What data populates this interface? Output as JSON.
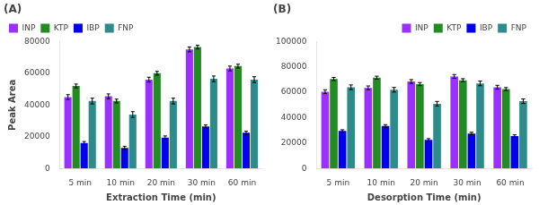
{
  "chart_data": [
    {
      "type": "bar",
      "title": "(A)",
      "xlabel": "Extraction Time (min)",
      "ylabel": "Peak Area",
      "categories": [
        "5 min",
        "10 min",
        "20 min",
        "30 min",
        "60 min"
      ],
      "series": [
        {
          "name": "INP",
          "color": "#9B30FF",
          "values": [
            45000,
            45500,
            56000,
            75000,
            63000
          ],
          "errors": [
            1500,
            1500,
            1500,
            1500,
            1500
          ]
        },
        {
          "name": "KTP",
          "color": "#228B22",
          "values": [
            52000,
            42500,
            60000,
            76500,
            64500
          ],
          "errors": [
            1200,
            1200,
            1200,
            1200,
            1200
          ]
        },
        {
          "name": "IBP",
          "color": "#0000EE",
          "values": [
            16000,
            13000,
            19500,
            26500,
            22500
          ],
          "errors": [
            1000,
            1000,
            1000,
            1000,
            1000
          ]
        },
        {
          "name": "FNP",
          "color": "#2E8B8B",
          "values": [
            42500,
            34000,
            42500,
            56500,
            56000
          ],
          "errors": [
            1800,
            1800,
            1800,
            1800,
            1800
          ]
        }
      ],
      "ylim": [
        0,
        80000
      ],
      "yticks": [
        0,
        20000,
        40000,
        60000,
        80000
      ],
      "grid": false,
      "legend": "upper left"
    },
    {
      "type": "bar",
      "title": "(B)",
      "xlabel": "Desorption Time (min)",
      "categories": [
        "5 min",
        "10 min",
        "20 min",
        "30 min",
        "60 min"
      ],
      "series": [
        {
          "name": "INP",
          "color": "#9B30FF",
          "values": [
            60500,
            63500,
            68500,
            72500,
            64000
          ],
          "errors": [
            1500,
            1500,
            1500,
            1500,
            1500
          ]
        },
        {
          "name": "KTP",
          "color": "#228B22",
          "values": [
            70500,
            71500,
            66500,
            69500,
            62500
          ],
          "errors": [
            1200,
            1200,
            1200,
            1200,
            1200
          ]
        },
        {
          "name": "IBP",
          "color": "#0000EE",
          "values": [
            29500,
            33500,
            22500,
            27500,
            25500
          ],
          "errors": [
            1000,
            1000,
            1000,
            1000,
            1000
          ]
        },
        {
          "name": "FNP",
          "color": "#2E8B8B",
          "values": [
            64000,
            62000,
            51000,
            67000,
            53000
          ],
          "errors": [
            1800,
            1800,
            1800,
            1800,
            1800
          ]
        }
      ],
      "ylim": [
        0,
        100000
      ],
      "yticks": [
        0,
        20000,
        40000,
        60000,
        80000,
        100000
      ],
      "grid": false,
      "legend": "upper right"
    }
  ]
}
